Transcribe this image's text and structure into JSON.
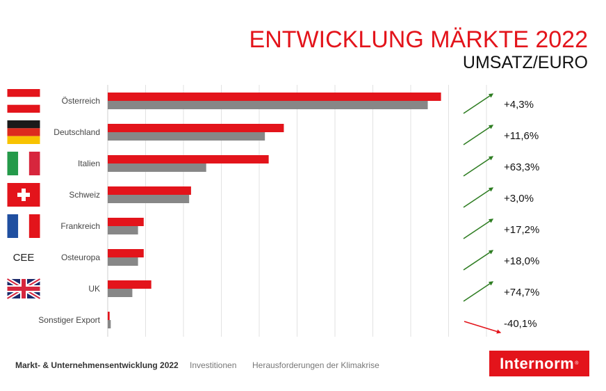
{
  "header": {
    "title": "ENTWICKLUNG MÄRKTE 2022",
    "subtitle": "UMSATZ/EURO"
  },
  "chart_data": {
    "type": "bar",
    "orientation": "horizontal",
    "categories": [
      "Österreich",
      "Deutschland",
      "Italien",
      "Schweiz",
      "Frankreich",
      "Osteuropa",
      "UK",
      "Sonstiger Export"
    ],
    "series": [
      {
        "values": [
          88,
          46.5,
          42.5,
          22,
          9.5,
          9.5,
          11.5,
          0.5
        ],
        "color": "#e3141b"
      },
      {
        "values": [
          84.5,
          41.5,
          26,
          21.5,
          8,
          8,
          6.5,
          0.8
        ],
        "color": "#878787"
      }
    ],
    "xlim": [
      0,
      100
    ],
    "grid": true,
    "changes": [
      "+4,3%",
      "+11,6%",
      "+63,3%",
      "+3,0%",
      "+17,2%",
      "+18,0%",
      "+74,7%",
      "-40,1%"
    ],
    "change_trend": [
      "up",
      "up",
      "up",
      "up",
      "up",
      "up",
      "up",
      "down"
    ],
    "flags": [
      "austria-flag-icon",
      "germany-flag-icon",
      "italy-flag-icon",
      "switzerland-flag-icon",
      "france-flag-icon",
      "cee",
      "uk-flag-icon",
      ""
    ],
    "cee_label": "CEE",
    "up_color": "#2e7d22",
    "down_color": "#e3141b"
  },
  "footer": {
    "items": [
      "Markt- & Unternehmensentwicklung 2022",
      "Investitionen",
      "Herausforderungen der Klimakrise"
    ]
  },
  "logo": {
    "text": "Internorm",
    "mark": "®"
  }
}
